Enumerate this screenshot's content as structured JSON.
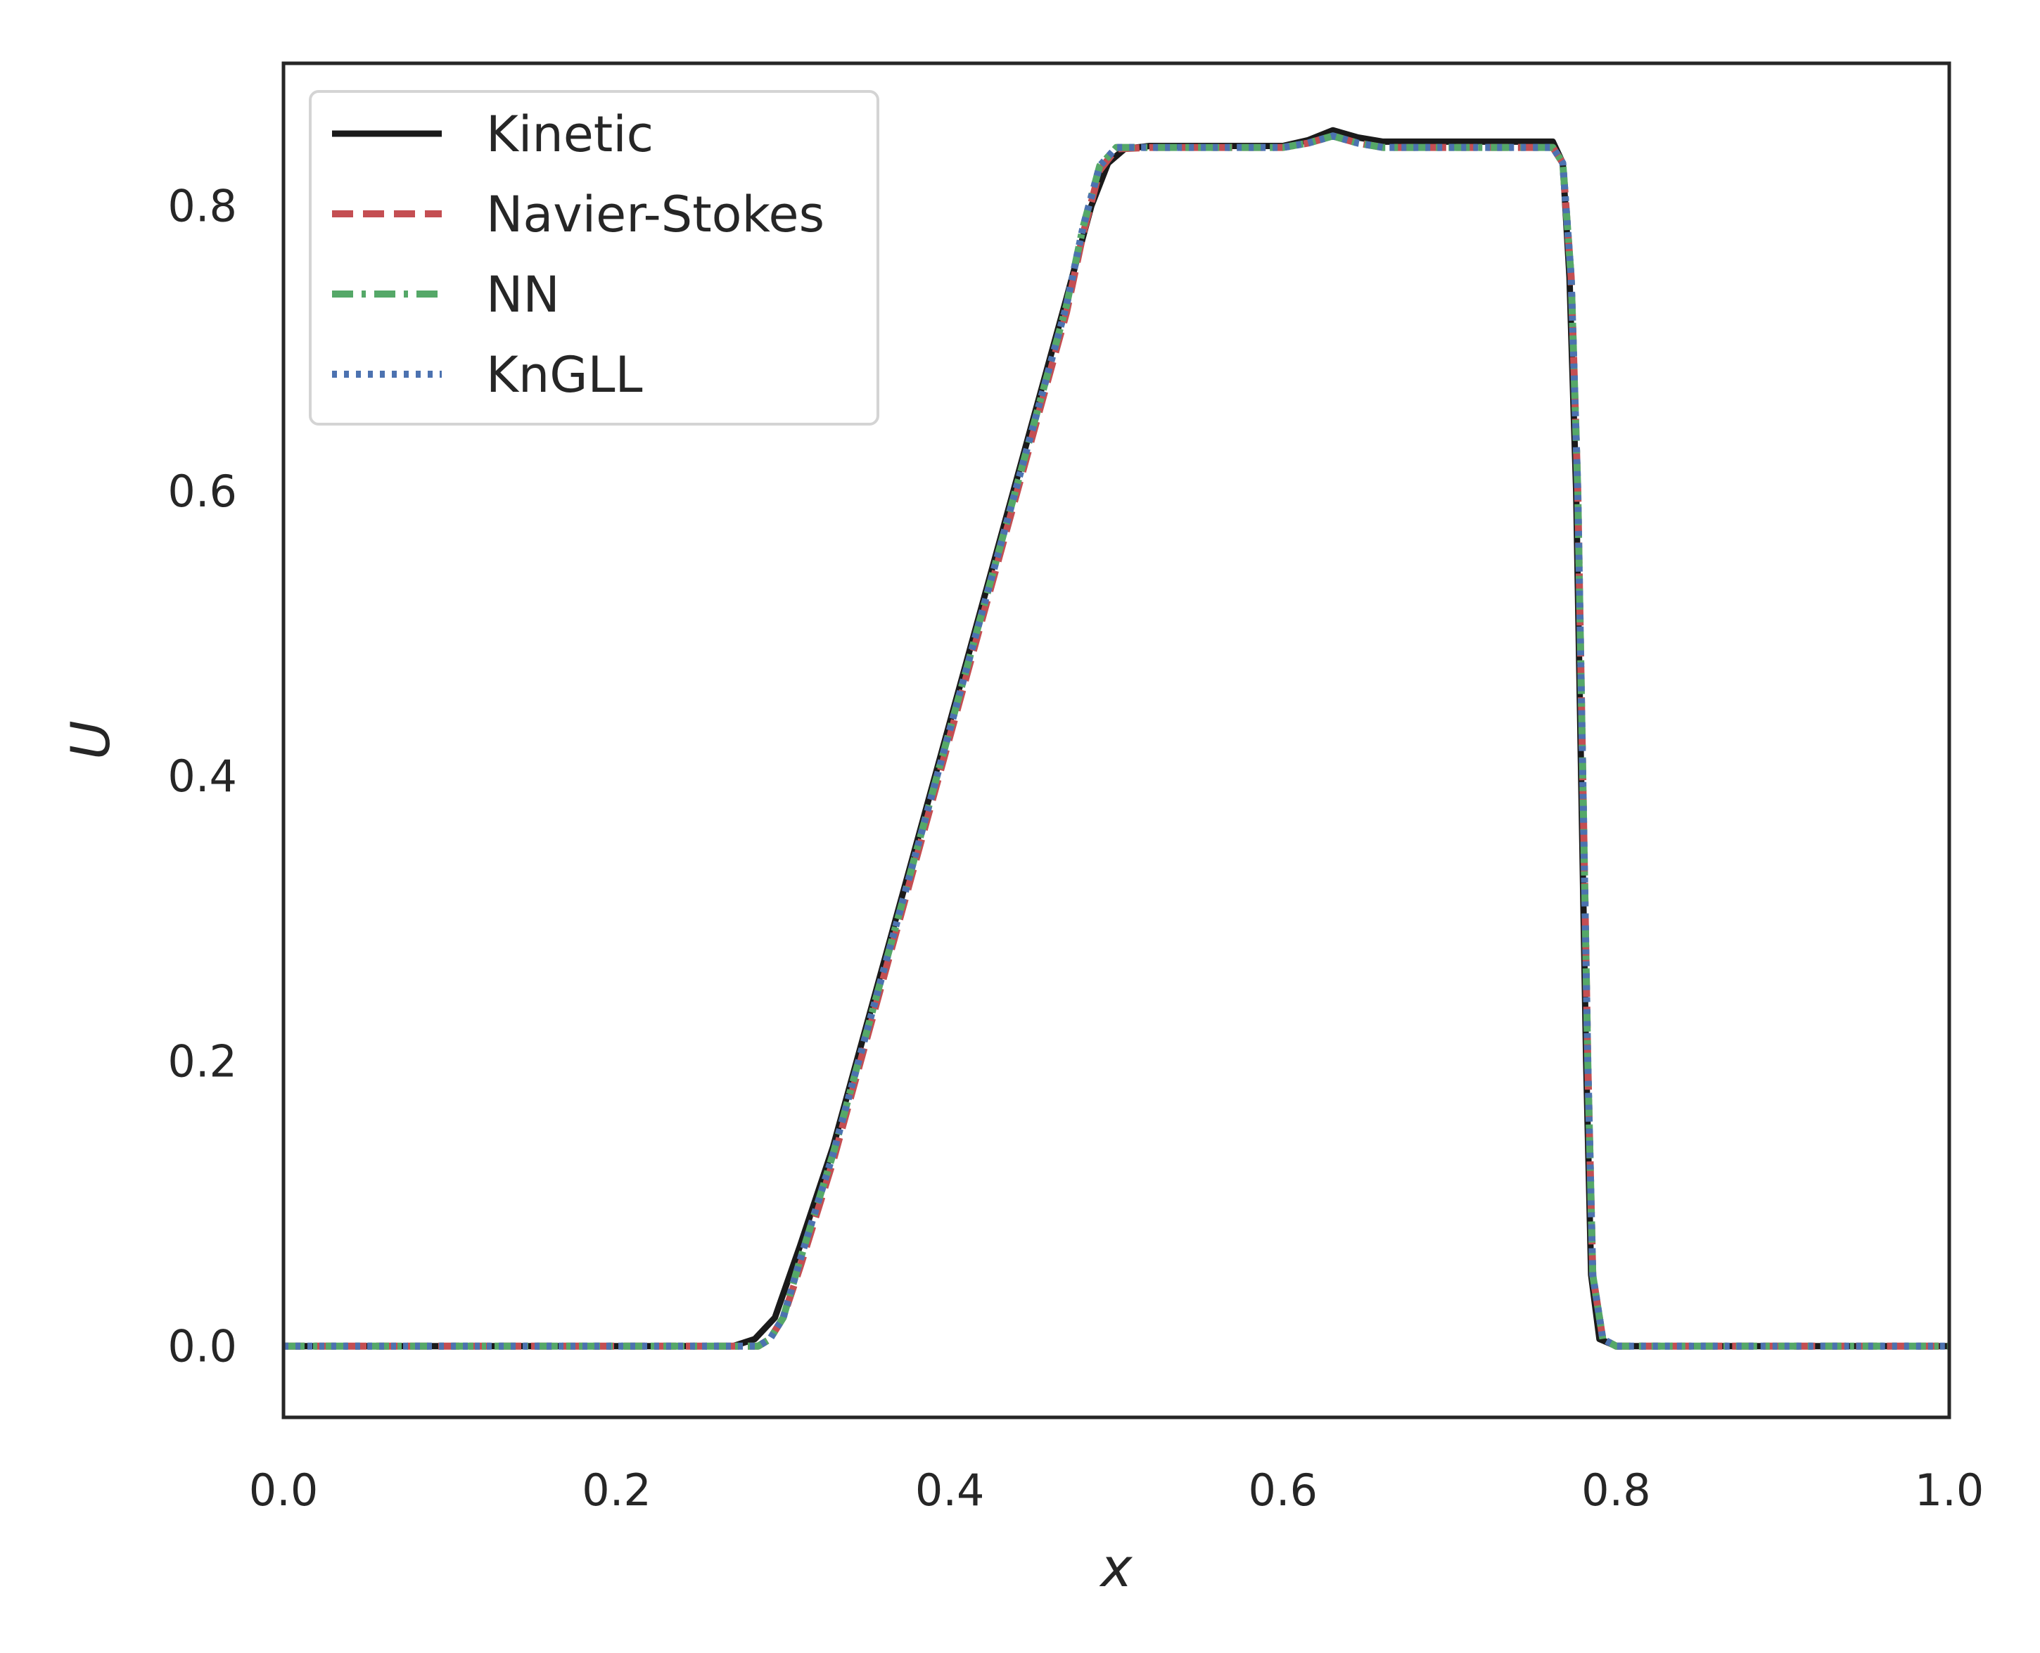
{
  "chart_data": {
    "type": "line",
    "title": "",
    "xlabel": "x",
    "ylabel": "U",
    "xlim": [
      0.0,
      1.0
    ],
    "ylim": [
      -0.05,
      0.9
    ],
    "xticks": [
      "0.0",
      "0.2",
      "0.4",
      "0.6",
      "0.8",
      "1.0"
    ],
    "yticks": [
      "0.0",
      "0.2",
      "0.4",
      "0.6",
      "0.8"
    ],
    "grid": false,
    "legend": "top-left",
    "series": [
      {
        "name": "Kinetic",
        "color": "#1a1a1a",
        "style": "solid",
        "points": [
          [
            0.0,
            0.0
          ],
          [
            0.27,
            0.0
          ],
          [
            0.283,
            0.005
          ],
          [
            0.295,
            0.02
          ],
          [
            0.31,
            0.07
          ],
          [
            0.33,
            0.14
          ],
          [
            0.35,
            0.225
          ],
          [
            0.37,
            0.31
          ],
          [
            0.39,
            0.395
          ],
          [
            0.41,
            0.48
          ],
          [
            0.43,
            0.565
          ],
          [
            0.45,
            0.65
          ],
          [
            0.47,
            0.735
          ],
          [
            0.485,
            0.8
          ],
          [
            0.495,
            0.83
          ],
          [
            0.505,
            0.84
          ],
          [
            0.52,
            0.842
          ],
          [
            0.6,
            0.842
          ],
          [
            0.615,
            0.846
          ],
          [
            0.63,
            0.853
          ],
          [
            0.645,
            0.848
          ],
          [
            0.66,
            0.845
          ],
          [
            0.7,
            0.845
          ],
          [
            0.762,
            0.845
          ],
          [
            0.768,
            0.83
          ],
          [
            0.772,
            0.75
          ],
          [
            0.776,
            0.6
          ],
          [
            0.779,
            0.4
          ],
          [
            0.782,
            0.2
          ],
          [
            0.785,
            0.05
          ],
          [
            0.79,
            0.005
          ],
          [
            0.8,
            0.0
          ],
          [
            1.0,
            0.0
          ]
        ]
      },
      {
        "name": "Navier-Stokes",
        "color": "#c44e52",
        "style": "dashed",
        "points": [
          [
            0.0,
            0.0
          ],
          [
            0.285,
            0.0
          ],
          [
            0.292,
            0.005
          ],
          [
            0.3,
            0.02
          ],
          [
            0.31,
            0.055
          ],
          [
            0.33,
            0.13
          ],
          [
            0.35,
            0.215
          ],
          [
            0.37,
            0.3
          ],
          [
            0.39,
            0.385
          ],
          [
            0.41,
            0.47
          ],
          [
            0.43,
            0.555
          ],
          [
            0.45,
            0.64
          ],
          [
            0.47,
            0.725
          ],
          [
            0.48,
            0.78
          ],
          [
            0.49,
            0.825
          ],
          [
            0.5,
            0.84
          ],
          [
            0.52,
            0.841
          ],
          [
            0.6,
            0.841
          ],
          [
            0.615,
            0.844
          ],
          [
            0.63,
            0.849
          ],
          [
            0.645,
            0.844
          ],
          [
            0.66,
            0.841
          ],
          [
            0.7,
            0.841
          ],
          [
            0.762,
            0.841
          ],
          [
            0.768,
            0.83
          ],
          [
            0.773,
            0.75
          ],
          [
            0.777,
            0.6
          ],
          [
            0.78,
            0.4
          ],
          [
            0.783,
            0.2
          ],
          [
            0.786,
            0.05
          ],
          [
            0.792,
            0.005
          ],
          [
            0.8,
            0.0
          ],
          [
            1.0,
            0.0
          ]
        ]
      },
      {
        "name": "NN",
        "color": "#55a868",
        "style": "dashdot",
        "points": [
          [
            0.0,
            0.0
          ],
          [
            0.285,
            0.0
          ],
          [
            0.292,
            0.005
          ],
          [
            0.3,
            0.02
          ],
          [
            0.31,
            0.06
          ],
          [
            0.33,
            0.135
          ],
          [
            0.35,
            0.22
          ],
          [
            0.37,
            0.305
          ],
          [
            0.39,
            0.39
          ],
          [
            0.41,
            0.475
          ],
          [
            0.43,
            0.56
          ],
          [
            0.45,
            0.645
          ],
          [
            0.47,
            0.73
          ],
          [
            0.48,
            0.785
          ],
          [
            0.49,
            0.828
          ],
          [
            0.5,
            0.841
          ],
          [
            0.52,
            0.841
          ],
          [
            0.6,
            0.841
          ],
          [
            0.615,
            0.844
          ],
          [
            0.63,
            0.849
          ],
          [
            0.645,
            0.844
          ],
          [
            0.66,
            0.841
          ],
          [
            0.7,
            0.841
          ],
          [
            0.762,
            0.841
          ],
          [
            0.768,
            0.83
          ],
          [
            0.773,
            0.75
          ],
          [
            0.777,
            0.6
          ],
          [
            0.78,
            0.4
          ],
          [
            0.783,
            0.2
          ],
          [
            0.786,
            0.05
          ],
          [
            0.792,
            0.005
          ],
          [
            0.8,
            0.0
          ],
          [
            1.0,
            0.0
          ]
        ]
      },
      {
        "name": "KnGLL",
        "color": "#4c72b0",
        "style": "dotted",
        "points": [
          [
            0.0,
            0.0
          ],
          [
            0.285,
            0.0
          ],
          [
            0.292,
            0.005
          ],
          [
            0.3,
            0.02
          ],
          [
            0.31,
            0.06
          ],
          [
            0.33,
            0.135
          ],
          [
            0.35,
            0.22
          ],
          [
            0.37,
            0.305
          ],
          [
            0.39,
            0.39
          ],
          [
            0.41,
            0.475
          ],
          [
            0.43,
            0.56
          ],
          [
            0.45,
            0.645
          ],
          [
            0.47,
            0.73
          ],
          [
            0.48,
            0.785
          ],
          [
            0.49,
            0.828
          ],
          [
            0.5,
            0.841
          ],
          [
            0.52,
            0.841
          ],
          [
            0.6,
            0.841
          ],
          [
            0.615,
            0.844
          ],
          [
            0.63,
            0.849
          ],
          [
            0.645,
            0.844
          ],
          [
            0.66,
            0.841
          ],
          [
            0.7,
            0.841
          ],
          [
            0.762,
            0.841
          ],
          [
            0.768,
            0.83
          ],
          [
            0.773,
            0.75
          ],
          [
            0.777,
            0.6
          ],
          [
            0.78,
            0.4
          ],
          [
            0.783,
            0.2
          ],
          [
            0.786,
            0.05
          ],
          [
            0.792,
            0.005
          ],
          [
            0.8,
            0.0
          ],
          [
            1.0,
            0.0
          ]
        ]
      }
    ]
  }
}
